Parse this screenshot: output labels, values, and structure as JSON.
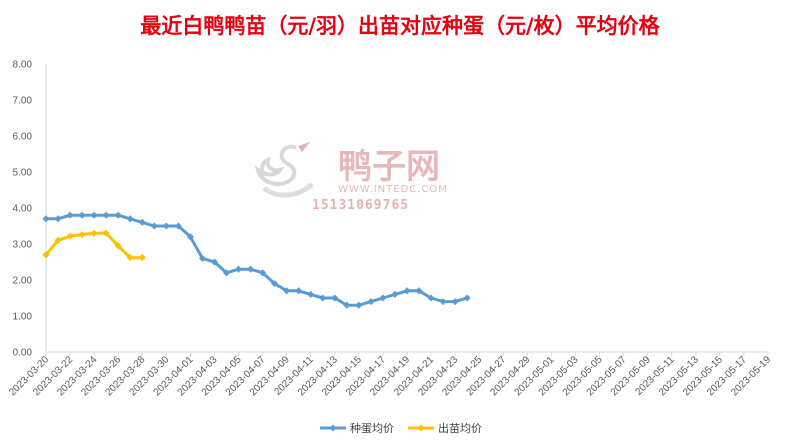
{
  "chart_data": {
    "type": "line",
    "title": "最近白鸭鸭苗（元/羽）出苗对应种蛋（元/枚）平均价格",
    "xlabel": "",
    "ylabel": "",
    "ylim": [
      0,
      8
    ],
    "y_ticks": [
      "0.00",
      "1.00",
      "2.00",
      "3.00",
      "4.00",
      "5.00",
      "6.00",
      "7.00",
      "8.00"
    ],
    "x_ticks": [
      "2023-03-20",
      "2023-03-22",
      "2023-03-24",
      "2023-03-26",
      "2023-03-28",
      "2023-03-30",
      "2023-04-01",
      "2023-04-03",
      "2023-04-05",
      "2023-04-07",
      "2023-04-09",
      "2023-04-11",
      "2023-04-13",
      "2023-04-15",
      "2023-04-17",
      "2023-04-19",
      "2023-04-21",
      "2023-04-23",
      "2023-04-25",
      "2023-04-27",
      "2023-04-29",
      "2023-05-01",
      "2023-05-03",
      "2023-05-05",
      "2023-05-07",
      "2023-05-09",
      "2023-05-11",
      "2023-05-13",
      "2023-05-15",
      "2023-05-17",
      "2023-05-19"
    ],
    "grid": false,
    "legend_position": "bottom",
    "series": [
      {
        "name": "种蛋均价",
        "color": "#5b9bd5",
        "points": [
          [
            "2023-03-20",
            3.7
          ],
          [
            "2023-03-21",
            3.7
          ],
          [
            "2023-03-22",
            3.8
          ],
          [
            "2023-03-23",
            3.8
          ],
          [
            "2023-03-24",
            3.8
          ],
          [
            "2023-03-25",
            3.8
          ],
          [
            "2023-03-26",
            3.8
          ],
          [
            "2023-03-27",
            3.7
          ],
          [
            "2023-03-28",
            3.6
          ],
          [
            "2023-03-29",
            3.5
          ],
          [
            "2023-03-30",
            3.5
          ],
          [
            "2023-03-31",
            3.5
          ],
          [
            "2023-04-01",
            3.2
          ],
          [
            "2023-04-02",
            2.6
          ],
          [
            "2023-04-03",
            2.5
          ],
          [
            "2023-04-04",
            2.2
          ],
          [
            "2023-04-05",
            2.3
          ],
          [
            "2023-04-06",
            2.3
          ],
          [
            "2023-04-07",
            2.2
          ],
          [
            "2023-04-08",
            1.9
          ],
          [
            "2023-04-09",
            1.7
          ],
          [
            "2023-04-10",
            1.7
          ],
          [
            "2023-04-11",
            1.6
          ],
          [
            "2023-04-12",
            1.5
          ],
          [
            "2023-04-13",
            1.5
          ],
          [
            "2023-04-14",
            1.3
          ],
          [
            "2023-04-15",
            1.3
          ],
          [
            "2023-04-16",
            1.4
          ],
          [
            "2023-04-17",
            1.5
          ],
          [
            "2023-04-18",
            1.6
          ],
          [
            "2023-04-19",
            1.7
          ],
          [
            "2023-04-20",
            1.7
          ],
          [
            "2023-04-21",
            1.5
          ],
          [
            "2023-04-22",
            1.4
          ],
          [
            "2023-04-23",
            1.4
          ],
          [
            "2023-04-24",
            1.5
          ]
        ]
      },
      {
        "name": "出苗均价",
        "color": "#ffc000",
        "points": [
          [
            "2023-03-20",
            2.7
          ],
          [
            "2023-03-21",
            3.1
          ],
          [
            "2023-03-22",
            3.22
          ],
          [
            "2023-03-23",
            3.26
          ],
          [
            "2023-03-24",
            3.3
          ],
          [
            "2023-03-25",
            3.3
          ],
          [
            "2023-03-26",
            2.95
          ],
          [
            "2023-03-27",
            2.62
          ],
          [
            "2023-03-28",
            2.62
          ]
        ]
      }
    ]
  },
  "watermark": {
    "brand": "鸭子网",
    "url": "WWW.INTEDC.COM",
    "phone": "15131069765",
    "logo_icon": "duck-logo-icon"
  }
}
